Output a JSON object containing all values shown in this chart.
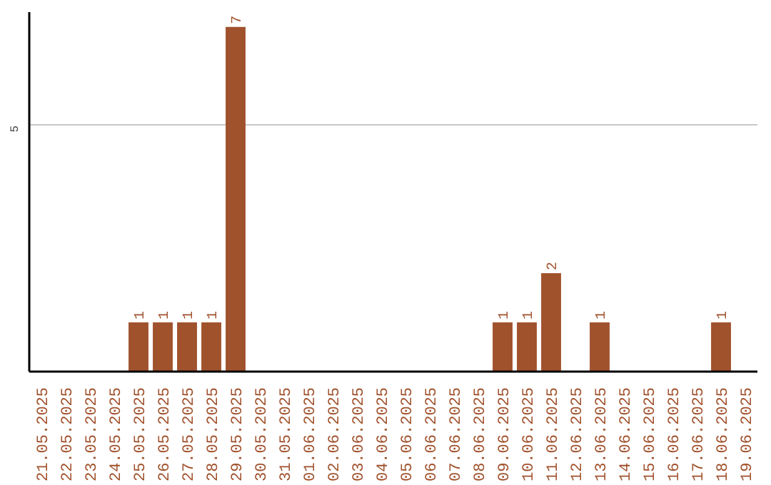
{
  "chart_data": {
    "type": "bar",
    "categories": [
      "21.05.2025",
      "22.05.2025",
      "23.05.2025",
      "24.05.2025",
      "25.05.2025",
      "26.05.2025",
      "27.05.2025",
      "28.05.2025",
      "29.05.2025",
      "30.05.2025",
      "31.05.2025",
      "01.06.2025",
      "02.06.2025",
      "03.06.2025",
      "04.06.2025",
      "05.06.2025",
      "06.06.2025",
      "07.06.2025",
      "08.06.2025",
      "09.06.2025",
      "10.06.2025",
      "11.06.2025",
      "12.06.2025",
      "13.06.2025",
      "14.06.2025",
      "15.06.2025",
      "16.06.2025",
      "17.06.2025",
      "18.06.2025",
      "19.06.2025"
    ],
    "values": [
      0,
      0,
      0,
      0,
      1,
      1,
      1,
      1,
      7,
      0,
      0,
      0,
      0,
      0,
      0,
      0,
      0,
      0,
      0,
      1,
      1,
      2,
      0,
      1,
      0,
      0,
      0,
      0,
      1,
      0
    ],
    "value_labels": [
      null,
      null,
      null,
      null,
      "1",
      "1",
      "1",
      "1",
      "7",
      null,
      null,
      null,
      null,
      null,
      null,
      null,
      null,
      null,
      null,
      "1",
      "1",
      "2",
      null,
      "1",
      null,
      null,
      null,
      null,
      "1",
      null
    ],
    "color": "#a0522d",
    "ylim": [
      0,
      7.3
    ],
    "yticks": [
      5
    ],
    "grid": "y"
  }
}
